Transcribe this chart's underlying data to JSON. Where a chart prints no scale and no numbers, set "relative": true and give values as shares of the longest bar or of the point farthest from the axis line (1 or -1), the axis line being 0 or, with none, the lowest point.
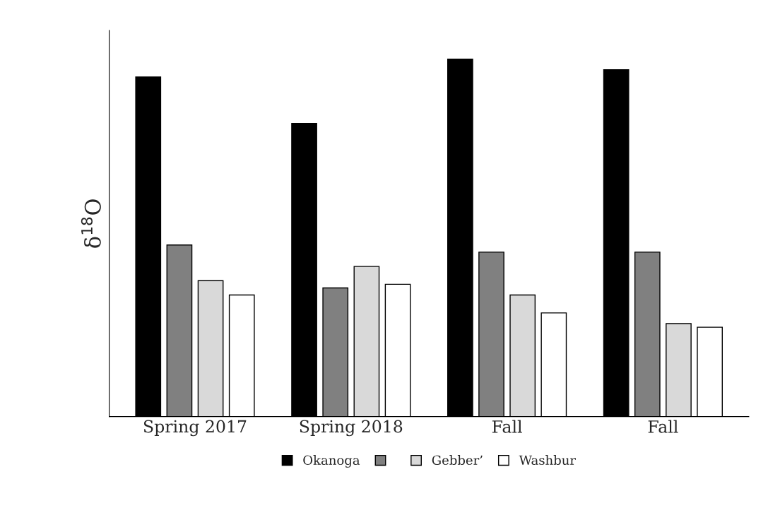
{
  "chart_data": {
    "type": "bar",
    "relative": true,
    "ylabel": "δ$^{18}$O",
    "categories": [
      "Spring 2017",
      "Spring 2018",
      "Fall",
      "Fall"
    ],
    "series": [
      {
        "name": "Okanoga",
        "color": "#000000",
        "values": [
          0.95,
          0.82,
          1.0,
          0.97
        ]
      },
      {
        "color": "#808080",
        "values": [
          0.48,
          0.36,
          0.46,
          0.46
        ]
      },
      {
        "name": "Gebber’",
        "color": "#d9d9d9",
        "values": [
          0.38,
          0.42,
          0.34,
          0.26
        ]
      },
      {
        "name": "Washbur",
        "color": "#ffffff",
        "values": [
          0.34,
          0.37,
          0.29,
          0.25
        ]
      }
    ],
    "legend": "bottom",
    "grid": false
  }
}
